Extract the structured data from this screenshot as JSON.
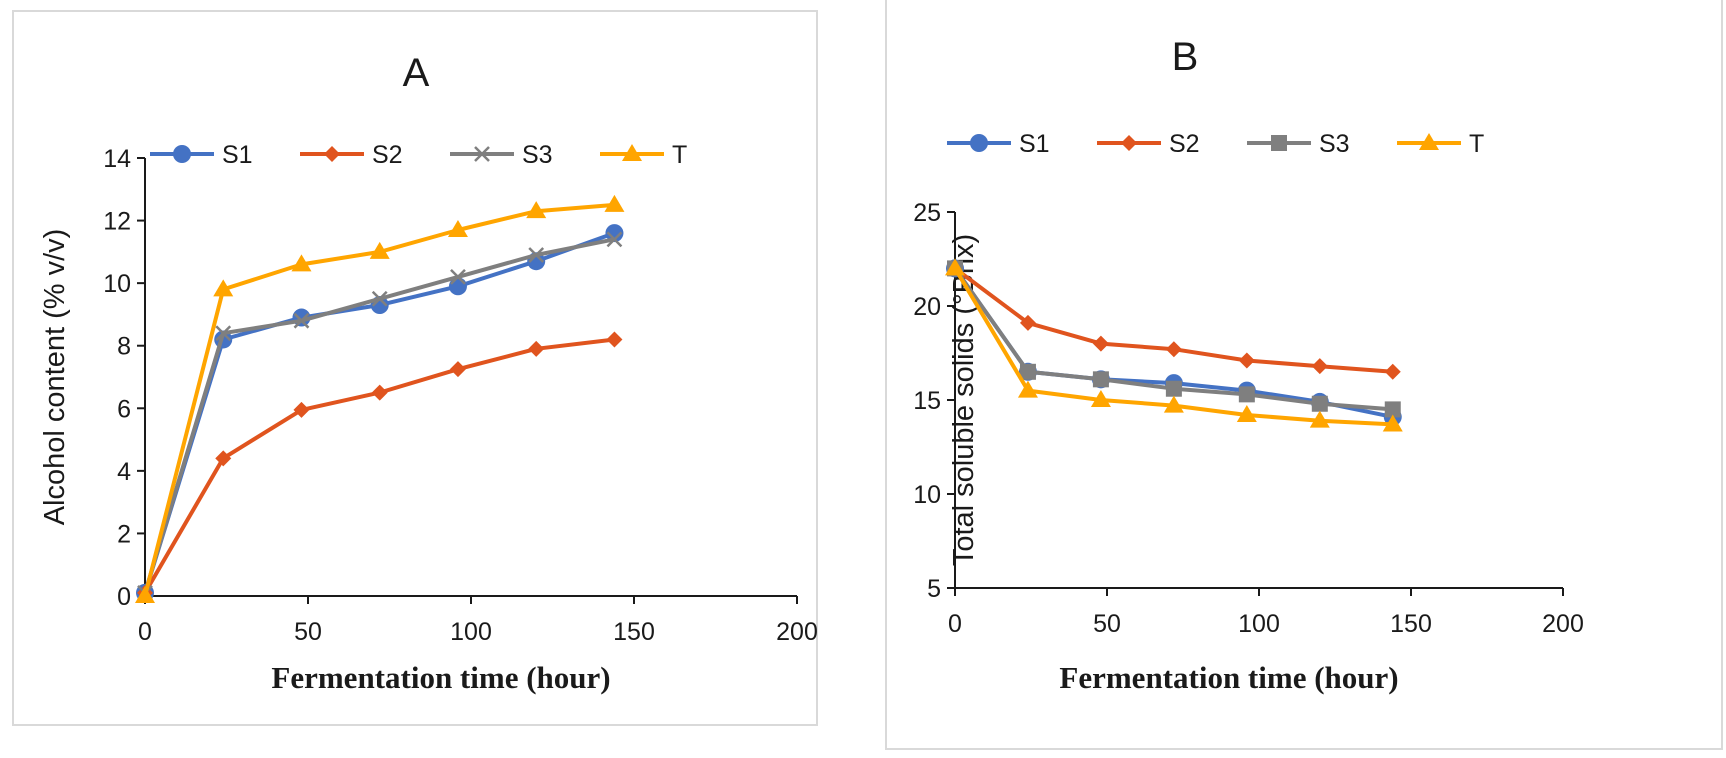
{
  "colors": {
    "S1": "#4472c4",
    "S2": "#e0541e",
    "S3": "#7f7f7f",
    "T": "#ffa500"
  },
  "chart_data": [
    {
      "type": "line",
      "title": "A",
      "xlabel": "Fermentation time  (hour)",
      "ylabel": "Alcohol content  (% v/v)",
      "xlim": [
        0,
        200
      ],
      "ylim": [
        0,
        14
      ],
      "xticks": [
        0,
        50,
        100,
        150,
        200
      ],
      "yticks": [
        0,
        2,
        4,
        6,
        8,
        10,
        12,
        14
      ],
      "legend": "top",
      "grid": false,
      "x": [
        0,
        24,
        48,
        72,
        96,
        120,
        144
      ],
      "series": [
        {
          "name": "S1",
          "marker": "circle",
          "values": [
            0.1,
            8.2,
            8.9,
            9.3,
            9.9,
            10.7,
            11.6
          ]
        },
        {
          "name": "S2",
          "marker": "diamond",
          "values": [
            0.1,
            4.4,
            5.95,
            6.5,
            7.25,
            7.9,
            8.2
          ]
        },
        {
          "name": "S3",
          "marker": "x",
          "values": [
            0.1,
            8.4,
            8.8,
            9.5,
            10.2,
            10.9,
            11.4
          ]
        },
        {
          "name": "T",
          "marker": "triangle",
          "values": [
            0,
            9.8,
            10.6,
            11.0,
            11.7,
            12.3,
            12.5
          ]
        }
      ]
    },
    {
      "type": "line",
      "title": "B",
      "xlabel": "Fermentation time  (hour)",
      "ylabel": "Total soluble  solids  (°Brix)",
      "xlim": [
        0,
        200
      ],
      "ylim": [
        5,
        25
      ],
      "xticks": [
        0,
        50,
        100,
        150,
        200
      ],
      "yticks": [
        5,
        10,
        15,
        20,
        25
      ],
      "legend": "top",
      "grid": false,
      "x": [
        0,
        24,
        48,
        72,
        96,
        120,
        144
      ],
      "series": [
        {
          "name": "S1",
          "marker": "circle",
          "values": [
            22,
            16.5,
            16.1,
            15.9,
            15.5,
            14.9,
            14.1
          ]
        },
        {
          "name": "S2",
          "marker": "diamond",
          "values": [
            22,
            19.1,
            18.0,
            17.7,
            17.1,
            16.8,
            16.5
          ]
        },
        {
          "name": "S3",
          "marker": "square",
          "values": [
            22,
            16.5,
            16.1,
            15.6,
            15.3,
            14.8,
            14.5
          ]
        },
        {
          "name": "T",
          "marker": "triangle",
          "values": [
            22,
            15.5,
            15.0,
            14.7,
            14.2,
            13.9,
            13.7
          ]
        }
      ]
    }
  ]
}
